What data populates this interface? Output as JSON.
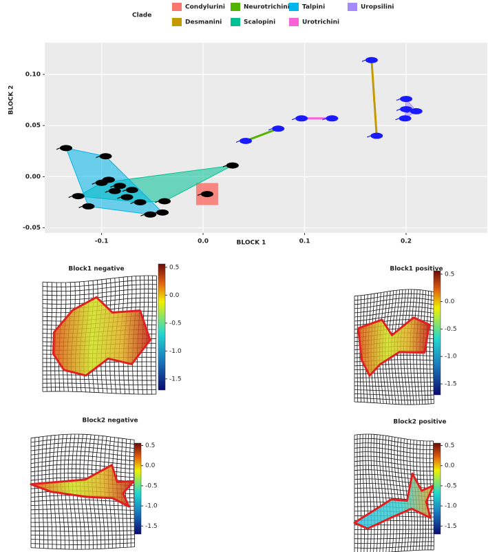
{
  "chart_data": [
    {
      "type": "scatter",
      "legend_title": "Clade",
      "x_label": "BLOCK 1",
      "y_label": "BLOCK 2",
      "xlim": [
        -0.156,
        0.28
      ],
      "ylim": [
        -0.055,
        0.131
      ],
      "xticks": [
        -0.1,
        {
          "value": 0,
          "label": "0.0"
        },
        0.1,
        0.2
      ],
      "yticks": [
        -0.05,
        {
          "value": 0,
          "label": "0.00"
        },
        0.05,
        {
          "value": 0.1,
          "label": "0.10"
        }
      ],
      "grid": true,
      "series": [
        {
          "name": "Condylurini",
          "color": "#f8766d",
          "marker_color": "#000000",
          "x": [
            0.004
          ],
          "values": [
            -0.017
          ]
        },
        {
          "name": "Desmanini",
          "color": "#c49a00",
          "marker_color": "#1a1aff",
          "x": [
            0.166,
            0.171
          ],
          "values": [
            0.114,
            0.04
          ]
        },
        {
          "name": "Neurotrichini",
          "color": "#53b400",
          "marker_color": "#1a1aff",
          "x": [
            0.042,
            0.074
          ],
          "values": [
            0.035,
            0.047
          ]
        },
        {
          "name": "Scalopini",
          "color": "#00c094",
          "marker_color": "#000000",
          "x": [
            -0.123,
            -0.1,
            0.029,
            -0.038,
            -0.087,
            -0.062,
            -0.075
          ],
          "values": [
            -0.019,
            -0.006,
            0.011,
            -0.024,
            -0.014,
            -0.025,
            -0.02
          ]
        },
        {
          "name": "Talpini",
          "color": "#00b6eb",
          "marker_color": "#000000",
          "x": [
            -0.135,
            -0.096,
            -0.113,
            -0.052,
            -0.04,
            -0.082,
            -0.093,
            -0.07
          ],
          "values": [
            0.028,
            0.02,
            -0.029,
            -0.037,
            -0.035,
            -0.009,
            -0.003,
            -0.013
          ]
        },
        {
          "name": "Urotrichini",
          "color": "#fb61d7",
          "marker_color": "#1a1aff",
          "x": [
            0.097,
            0.127
          ],
          "values": [
            0.057,
            0.057
          ]
        },
        {
          "name": "Uropsilini",
          "color": "#a58aff",
          "marker_color": "#1a1aff",
          "x": [
            0.2,
            0.2,
            0.21,
            0.199
          ],
          "values": [
            0.076,
            0.066,
            0.064,
            0.057
          ]
        }
      ]
    },
    {
      "type": "deformation",
      "title": "Block1 negative",
      "ylim": [
        -1.7,
        0.56
      ],
      "yticks": [
        0.5,
        {
          "value": 0,
          "label": "0.0"
        },
        -0.5,
        {
          "value": -1,
          "label": "-1.0"
        },
        -1.5
      ]
    },
    {
      "type": "deformation",
      "title": "Block1 positive",
      "ylim": [
        -1.7,
        0.56
      ],
      "yticks": [
        0.5,
        {
          "value": 0,
          "label": "0.0"
        },
        -0.5,
        {
          "value": -1,
          "label": "-1.0"
        },
        -1.5
      ]
    },
    {
      "type": "deformation",
      "title": "Block2 negative",
      "ylim": [
        -1.7,
        0.56
      ],
      "yticks": [
        0.5,
        {
          "value": 0,
          "label": "0.0"
        },
        -0.5,
        {
          "value": -1,
          "label": "-1.0"
        },
        -1.5
      ]
    },
    {
      "type": "deformation",
      "title": "Block2 positive",
      "ylim": [
        -1.7,
        0.56
      ],
      "yticks": [
        0.5,
        {
          "value": 0,
          "label": "0.0"
        },
        -0.5,
        {
          "value": -1,
          "label": "-1.0"
        },
        -1.5
      ]
    }
  ]
}
